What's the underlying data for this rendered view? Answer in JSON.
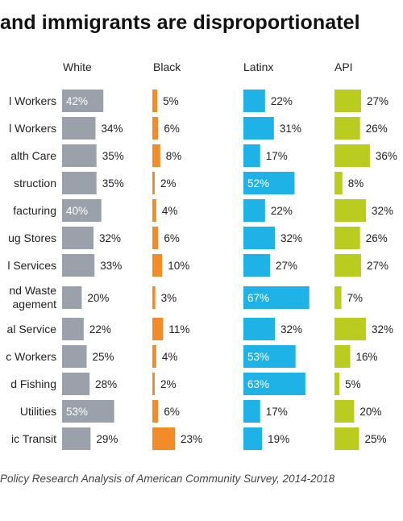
{
  "title": "and immigrants are disproportionatel",
  "source": "Policy Research Analysis of American Community Survey, 2014-2018",
  "colors": {
    "White": "#9aa1ab",
    "Black": "#f28c28",
    "Latinx": "#1fb2e6",
    "API": "#b9cc1f",
    "label_inside": "#ffffff",
    "label_outside": "#222222"
  },
  "chart_data": {
    "type": "bar",
    "categories": [
      "l Workers",
      "l Workers",
      "alth Care",
      "struction",
      "facturing",
      "ug Stores",
      "l Services",
      "nd Waste\nagement",
      "al Service",
      "c Workers",
      "d Fishing",
      "Utilities",
      "ic Transit"
    ],
    "series": [
      {
        "name": "White",
        "values": [
          42,
          34,
          35,
          35,
          40,
          32,
          33,
          20,
          22,
          25,
          28,
          53,
          29
        ]
      },
      {
        "name": "Black",
        "values": [
          5,
          6,
          8,
          2,
          4,
          6,
          10,
          3,
          11,
          4,
          2,
          6,
          23
        ]
      },
      {
        "name": "Latinx",
        "values": [
          22,
          31,
          17,
          52,
          22,
          32,
          27,
          67,
          32,
          53,
          63,
          17,
          19
        ]
      },
      {
        "name": "API",
        "values": [
          27,
          26,
          36,
          8,
          32,
          26,
          27,
          7,
          32,
          16,
          5,
          20,
          25
        ]
      }
    ],
    "value_suffix": "%",
    "inside_labels": {
      "White": [
        0,
        4,
        11
      ],
      "Latinx": [
        3,
        7,
        9,
        10
      ]
    },
    "title": "and immigrants are disproportionatel",
    "xlabel": "",
    "ylabel": ""
  }
}
